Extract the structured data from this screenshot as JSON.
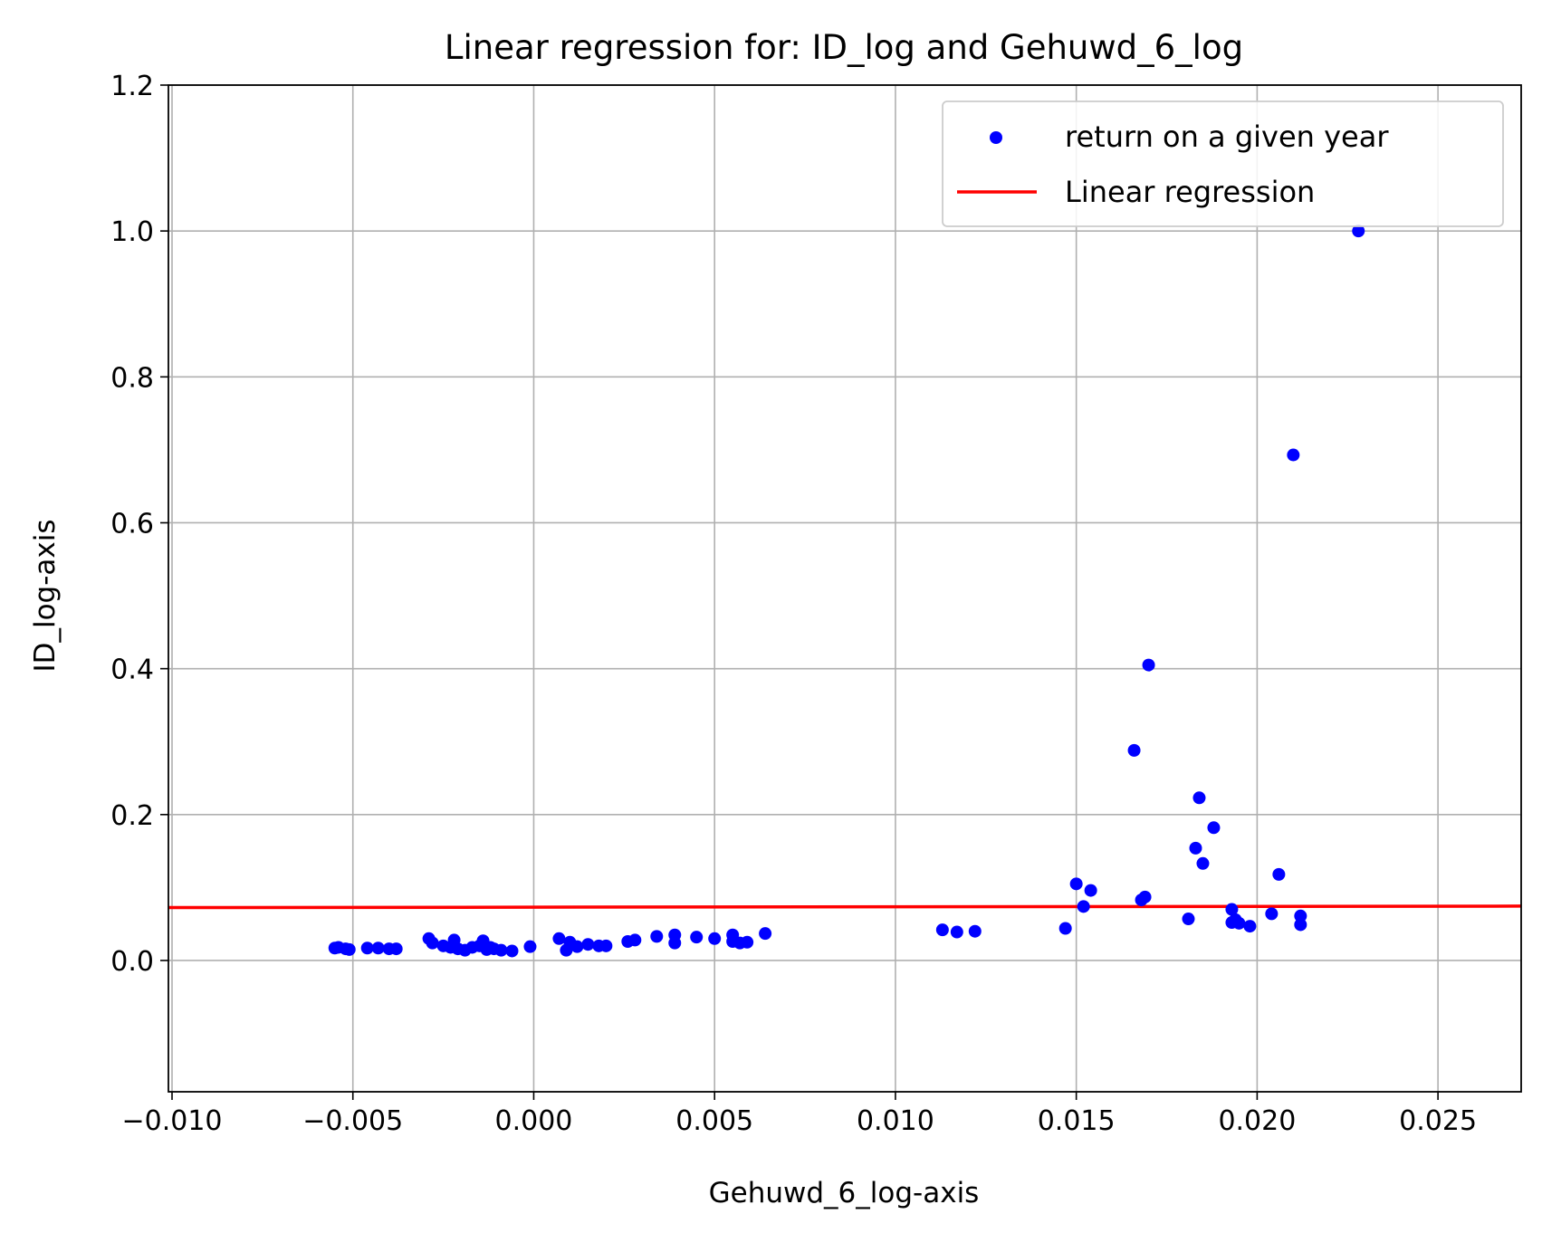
{
  "colors": {
    "points": "#0000ff",
    "regression": "#ff0000",
    "grid": "#b0b0b0",
    "axes": "#000000",
    "legend_border": "#cccccc"
  },
  "chart_data": {
    "type": "scatter",
    "title": "Linear regression for: ID_log and Gehuwd_6_log",
    "xlabel": "Gehuwd_6_log-axis",
    "ylabel": "ID_log-axis",
    "xlim": [
      -0.0101,
      0.0273
    ],
    "ylim": [
      -0.18,
      1.2
    ],
    "xticks": [
      -0.01,
      -0.005,
      0.0,
      0.005,
      0.01,
      0.015,
      0.02,
      0.025
    ],
    "xtick_labels": [
      "−0.010",
      "−0.005",
      "0.000",
      "0.005",
      "0.010",
      "0.015",
      "0.020",
      "0.025"
    ],
    "yticks": [
      0.0,
      0.2,
      0.4,
      0.6,
      0.8,
      1.0,
      1.2
    ],
    "ytick_labels": [
      "0.0",
      "0.2",
      "0.4",
      "0.6",
      "0.8",
      "1.0",
      "1.2"
    ],
    "grid": true,
    "legend_position": "top-right",
    "series": [
      {
        "name": "return on a given year",
        "kind": "scatter",
        "x": [
          -0.0055,
          -0.0054,
          -0.0052,
          -0.0051,
          -0.0046,
          -0.0043,
          -0.004,
          -0.0038,
          -0.0029,
          -0.0028,
          -0.0025,
          -0.0023,
          -0.0022,
          -0.0021,
          -0.0019,
          -0.0017,
          -0.0015,
          -0.0014,
          -0.0013,
          -0.0012,
          -0.0011,
          -0.0009,
          -0.0006,
          -0.0001,
          0.0007,
          0.0009,
          0.001,
          0.0012,
          0.0015,
          0.0018,
          0.002,
          0.0026,
          0.0028,
          0.0034,
          0.0039,
          0.0039,
          0.0045,
          0.005,
          0.0055,
          0.0055,
          0.0057,
          0.0059,
          0.0064,
          0.0113,
          0.0117,
          0.0122,
          0.0147,
          0.015,
          0.0152,
          0.0154,
          0.0166,
          0.0168,
          0.0169,
          0.017,
          0.0181,
          0.0183,
          0.0184,
          0.0185,
          0.0188,
          0.0193,
          0.0193,
          0.0194,
          0.0195,
          0.0198,
          0.0204,
          0.0206,
          0.021,
          0.0212,
          0.0212,
          0.0228
        ],
        "y": [
          0.017,
          0.018,
          0.016,
          0.015,
          0.017,
          0.017,
          0.016,
          0.016,
          0.03,
          0.024,
          0.02,
          0.018,
          0.028,
          0.016,
          0.014,
          0.018,
          0.02,
          0.027,
          0.015,
          0.018,
          0.016,
          0.014,
          0.013,
          0.019,
          0.03,
          0.014,
          0.025,
          0.019,
          0.022,
          0.02,
          0.02,
          0.026,
          0.028,
          0.033,
          0.024,
          0.035,
          0.032,
          0.03,
          0.026,
          0.035,
          0.024,
          0.025,
          0.037,
          0.042,
          0.039,
          0.04,
          0.044,
          0.105,
          0.074,
          0.096,
          0.288,
          0.083,
          0.087,
          0.405,
          0.057,
          0.154,
          0.223,
          0.133,
          0.182,
          0.07,
          0.052,
          0.056,
          0.051,
          0.047,
          0.064,
          0.118,
          0.693,
          0.061,
          0.049,
          1.0
        ]
      },
      {
        "name": "Linear regression",
        "kind": "line",
        "x": [
          -0.0101,
          0.0273
        ],
        "y": [
          0.0725,
          0.0745
        ]
      }
    ]
  }
}
